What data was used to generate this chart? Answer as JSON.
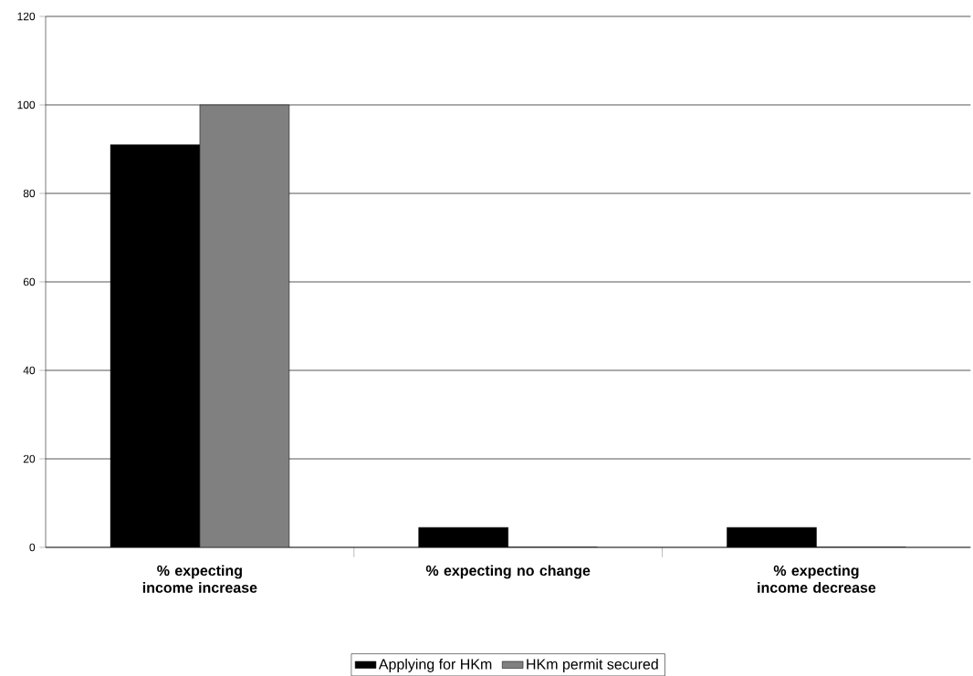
{
  "chart_data": {
    "type": "bar",
    "categories": [
      "% expecting income increase",
      "% expecting no change",
      "% expecting income decrease"
    ],
    "series": [
      {
        "name": "Applying for HKm",
        "color": "#000000",
        "values": [
          91,
          4.5,
          4.5
        ]
      },
      {
        "name": "HKm permit secured",
        "color": "#808080",
        "values": [
          100,
          0,
          0
        ]
      }
    ],
    "ylim": [
      0,
      120
    ],
    "yticks": [
      0,
      20,
      40,
      60,
      80,
      100,
      120
    ],
    "grid": "y",
    "legend": "bottom"
  }
}
